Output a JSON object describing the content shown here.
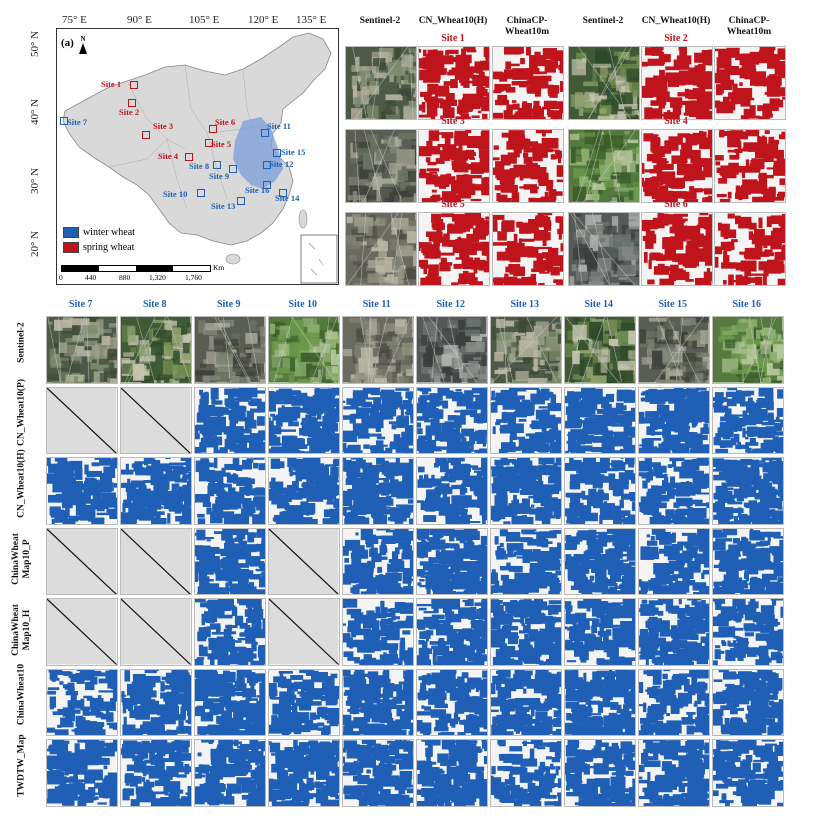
{
  "map": {
    "panel_label": "(a)",
    "north": "N",
    "lon_labels": [
      "75° E",
      "90° E",
      "105° E",
      "120° E",
      "135° E"
    ],
    "lat_labels": [
      "50° N",
      "40° N",
      "30° N",
      "20° N"
    ],
    "scale_labels": [
      "0",
      "440",
      "880",
      "1,320",
      "1,760"
    ],
    "scale_unit": "Km",
    "legend": [
      {
        "label": "winter wheat",
        "color": "#1f5fb5"
      },
      {
        "label": "spring wheat",
        "color": "#c0141c"
      }
    ],
    "sites": [
      {
        "name": "Site 1",
        "type": "spring"
      },
      {
        "name": "Site 2",
        "type": "spring"
      },
      {
        "name": "Site 3",
        "type": "spring"
      },
      {
        "name": "Site 4",
        "type": "spring"
      },
      {
        "name": "Site 5",
        "type": "spring"
      },
      {
        "name": "Site 6",
        "type": "spring"
      },
      {
        "name": "Site 7",
        "type": "winter"
      },
      {
        "name": "Site 8",
        "type": "winter"
      },
      {
        "name": "Site 9",
        "type": "winter"
      },
      {
        "name": "Site 10",
        "type": "winter"
      },
      {
        "name": "Site 11",
        "type": "winter"
      },
      {
        "name": "Site 12",
        "type": "winter"
      },
      {
        "name": "Site 13",
        "type": "winter"
      },
      {
        "name": "Site 14",
        "type": "winter"
      },
      {
        "name": "Site 15",
        "type": "winter"
      },
      {
        "name": "Site 16",
        "type": "winter"
      }
    ]
  },
  "top_panel": {
    "column_headers": [
      "Sentinel-2",
      "CN_Wheat10(H)",
      "ChinaCP-\nWheat10m",
      "Sentinel-2",
      "CN_Wheat10(H)",
      "ChinaCP-\nWheat10m"
    ],
    "site_titles": [
      "Site 1",
      "Site 2",
      "Site 3",
      "Site 4",
      "Site 5",
      "Site 6"
    ]
  },
  "bottom_panel": {
    "site_titles": [
      "Site 7",
      "Site 8",
      "Site 9",
      "Site 10",
      "Site 11",
      "Site 12",
      "Site 13",
      "Site 14",
      "Site 15",
      "Site 16"
    ],
    "row_labels": [
      "Sentinel-2",
      "CN_Wheat10(P)",
      "CN_Wheat10(H)",
      "ChinaWheat\nMap10_P",
      "ChinaWheat\nMap10_H",
      "ChinaWheat10",
      "TWDTW_Map"
    ],
    "no_data_cells": [
      [
        1,
        0
      ],
      [
        1,
        1
      ],
      [
        3,
        0
      ],
      [
        3,
        1
      ],
      [
        3,
        3
      ],
      [
        4,
        0
      ],
      [
        4,
        1
      ],
      [
        4,
        3
      ]
    ]
  },
  "colors": {
    "winter": "#1f5fb5",
    "spring": "#c0141c",
    "land": "#d9d9d9",
    "nodata": "#dcdcdc"
  }
}
